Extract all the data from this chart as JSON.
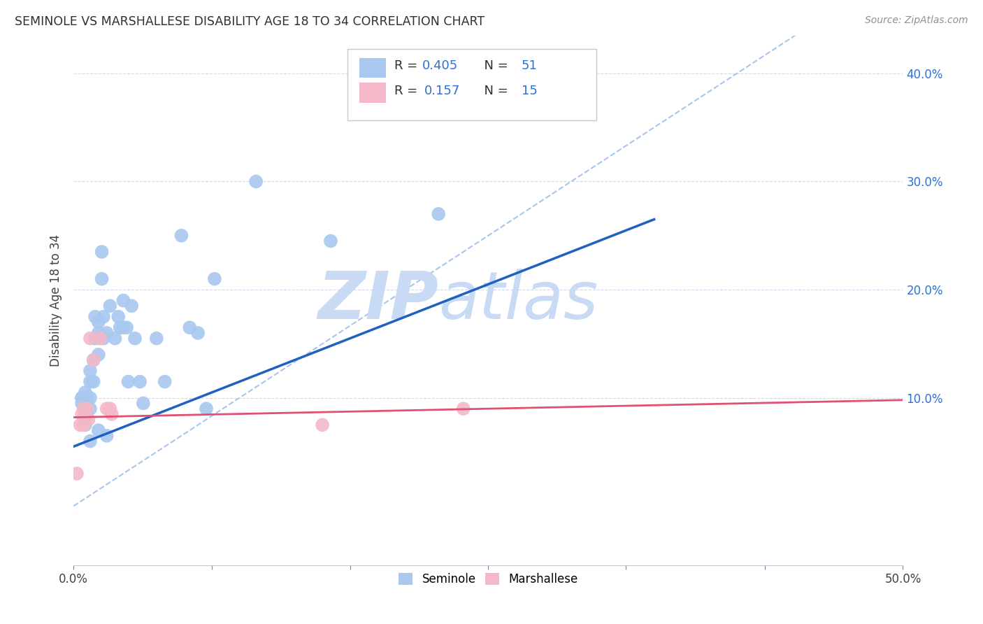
{
  "title": "SEMINOLE VS MARSHALLESE DISABILITY AGE 18 TO 34 CORRELATION CHART",
  "source": "Source: ZipAtlas.com",
  "ylabel": "Disability Age 18 to 34",
  "xlim": [
    0.0,
    0.5
  ],
  "ylim": [
    -0.055,
    0.435
  ],
  "xticks": [
    0.0,
    0.0833,
    0.1667,
    0.25,
    0.333,
    0.4167,
    0.5
  ],
  "xtick_labels_show": [
    "0.0%",
    "",
    "",
    "",
    "",
    "",
    "50.0%"
  ],
  "yticks_right": [
    0.1,
    0.2,
    0.3,
    0.4
  ],
  "ytick_labels_right": [
    "10.0%",
    "20.0%",
    "30.0%",
    "40.0%"
  ],
  "seminole_color": "#a8c8f0",
  "marshallese_color": "#f4b8c8",
  "seminole_line_color": "#2060c0",
  "marshallese_line_color": "#e05070",
  "ref_line_color": "#90b8e8",
  "watermark_zip": "ZIP",
  "watermark_atlas": "atlas",
  "watermark_color": "#c8daf4",
  "legend_r_color": "#3070d0",
  "seminole_x": [
    0.005,
    0.005,
    0.005,
    0.007,
    0.007,
    0.007,
    0.007,
    0.008,
    0.008,
    0.01,
    0.01,
    0.01,
    0.01,
    0.01,
    0.012,
    0.012,
    0.013,
    0.013,
    0.015,
    0.015,
    0.015,
    0.015,
    0.017,
    0.017,
    0.018,
    0.018,
    0.02,
    0.02,
    0.022,
    0.025,
    0.027,
    0.028,
    0.03,
    0.03,
    0.032,
    0.033,
    0.035,
    0.037,
    0.04,
    0.042,
    0.05,
    0.055,
    0.065,
    0.07,
    0.075,
    0.08,
    0.085,
    0.11,
    0.155,
    0.22
  ],
  "seminole_y": [
    0.1,
    0.1,
    0.095,
    0.105,
    0.095,
    0.085,
    0.075,
    0.1,
    0.085,
    0.125,
    0.115,
    0.1,
    0.09,
    0.06,
    0.135,
    0.115,
    0.175,
    0.155,
    0.17,
    0.16,
    0.14,
    0.07,
    0.235,
    0.21,
    0.175,
    0.155,
    0.16,
    0.065,
    0.185,
    0.155,
    0.175,
    0.165,
    0.19,
    0.165,
    0.165,
    0.115,
    0.185,
    0.155,
    0.115,
    0.095,
    0.155,
    0.115,
    0.25,
    0.165,
    0.16,
    0.09,
    0.21,
    0.3,
    0.245,
    0.27
  ],
  "marshallese_x": [
    0.002,
    0.004,
    0.005,
    0.006,
    0.006,
    0.008,
    0.009,
    0.01,
    0.012,
    0.016,
    0.02,
    0.022,
    0.023,
    0.15,
    0.235
  ],
  "marshallese_y": [
    0.03,
    0.075,
    0.085,
    0.09,
    0.075,
    0.09,
    0.08,
    0.155,
    0.135,
    0.155,
    0.09,
    0.09,
    0.085,
    0.075,
    0.09
  ],
  "seminole_line_x": [
    0.0,
    0.35
  ],
  "seminole_line_y": [
    0.055,
    0.265
  ],
  "marshallese_line_x": [
    0.0,
    0.5
  ],
  "marshallese_line_y": [
    0.082,
    0.098
  ],
  "ref_line_x": [
    0.0,
    0.5
  ],
  "ref_line_y": [
    0.0,
    0.5
  ],
  "bottom_seminole_label": "Seminole",
  "bottom_marshallese_label": "Marshallese"
}
